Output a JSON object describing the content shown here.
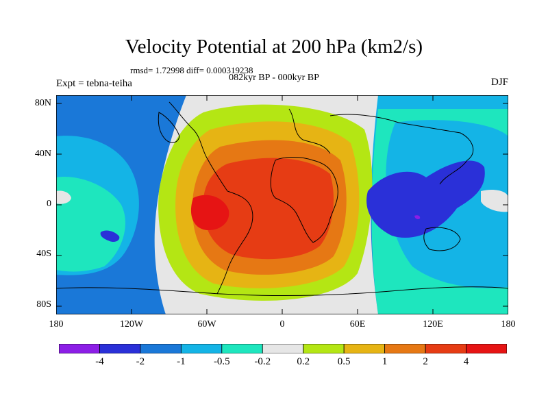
{
  "title": "Velocity Potential at 200 hPa (km2/s)",
  "stats": "rmsd= 1.72998 diff= 0.000319238",
  "subtitle": "082kyr BP - 000kyr BP",
  "left_label": "Expt = tebna-teiha",
  "right_label": "DJF",
  "lat_labels": [
    "80N",
    "40N",
    "0",
    "40S",
    "80S"
  ],
  "lon_labels": [
    "180",
    "120W",
    "60W",
    "0",
    "60E",
    "120E",
    "180"
  ],
  "colorbar": {
    "colors": [
      "#8c1ee6",
      "#2a30d8",
      "#1a78d8",
      "#14b4e6",
      "#1ee6be",
      "#e6e6e6",
      "#b4e614",
      "#e6b414",
      "#e67814",
      "#e63c14",
      "#e61414"
    ],
    "labels": [
      "-4",
      "-2",
      "-1",
      "-0.5",
      "-0.2",
      "0.2",
      "0.5",
      "1",
      "2",
      "4"
    ]
  }
}
